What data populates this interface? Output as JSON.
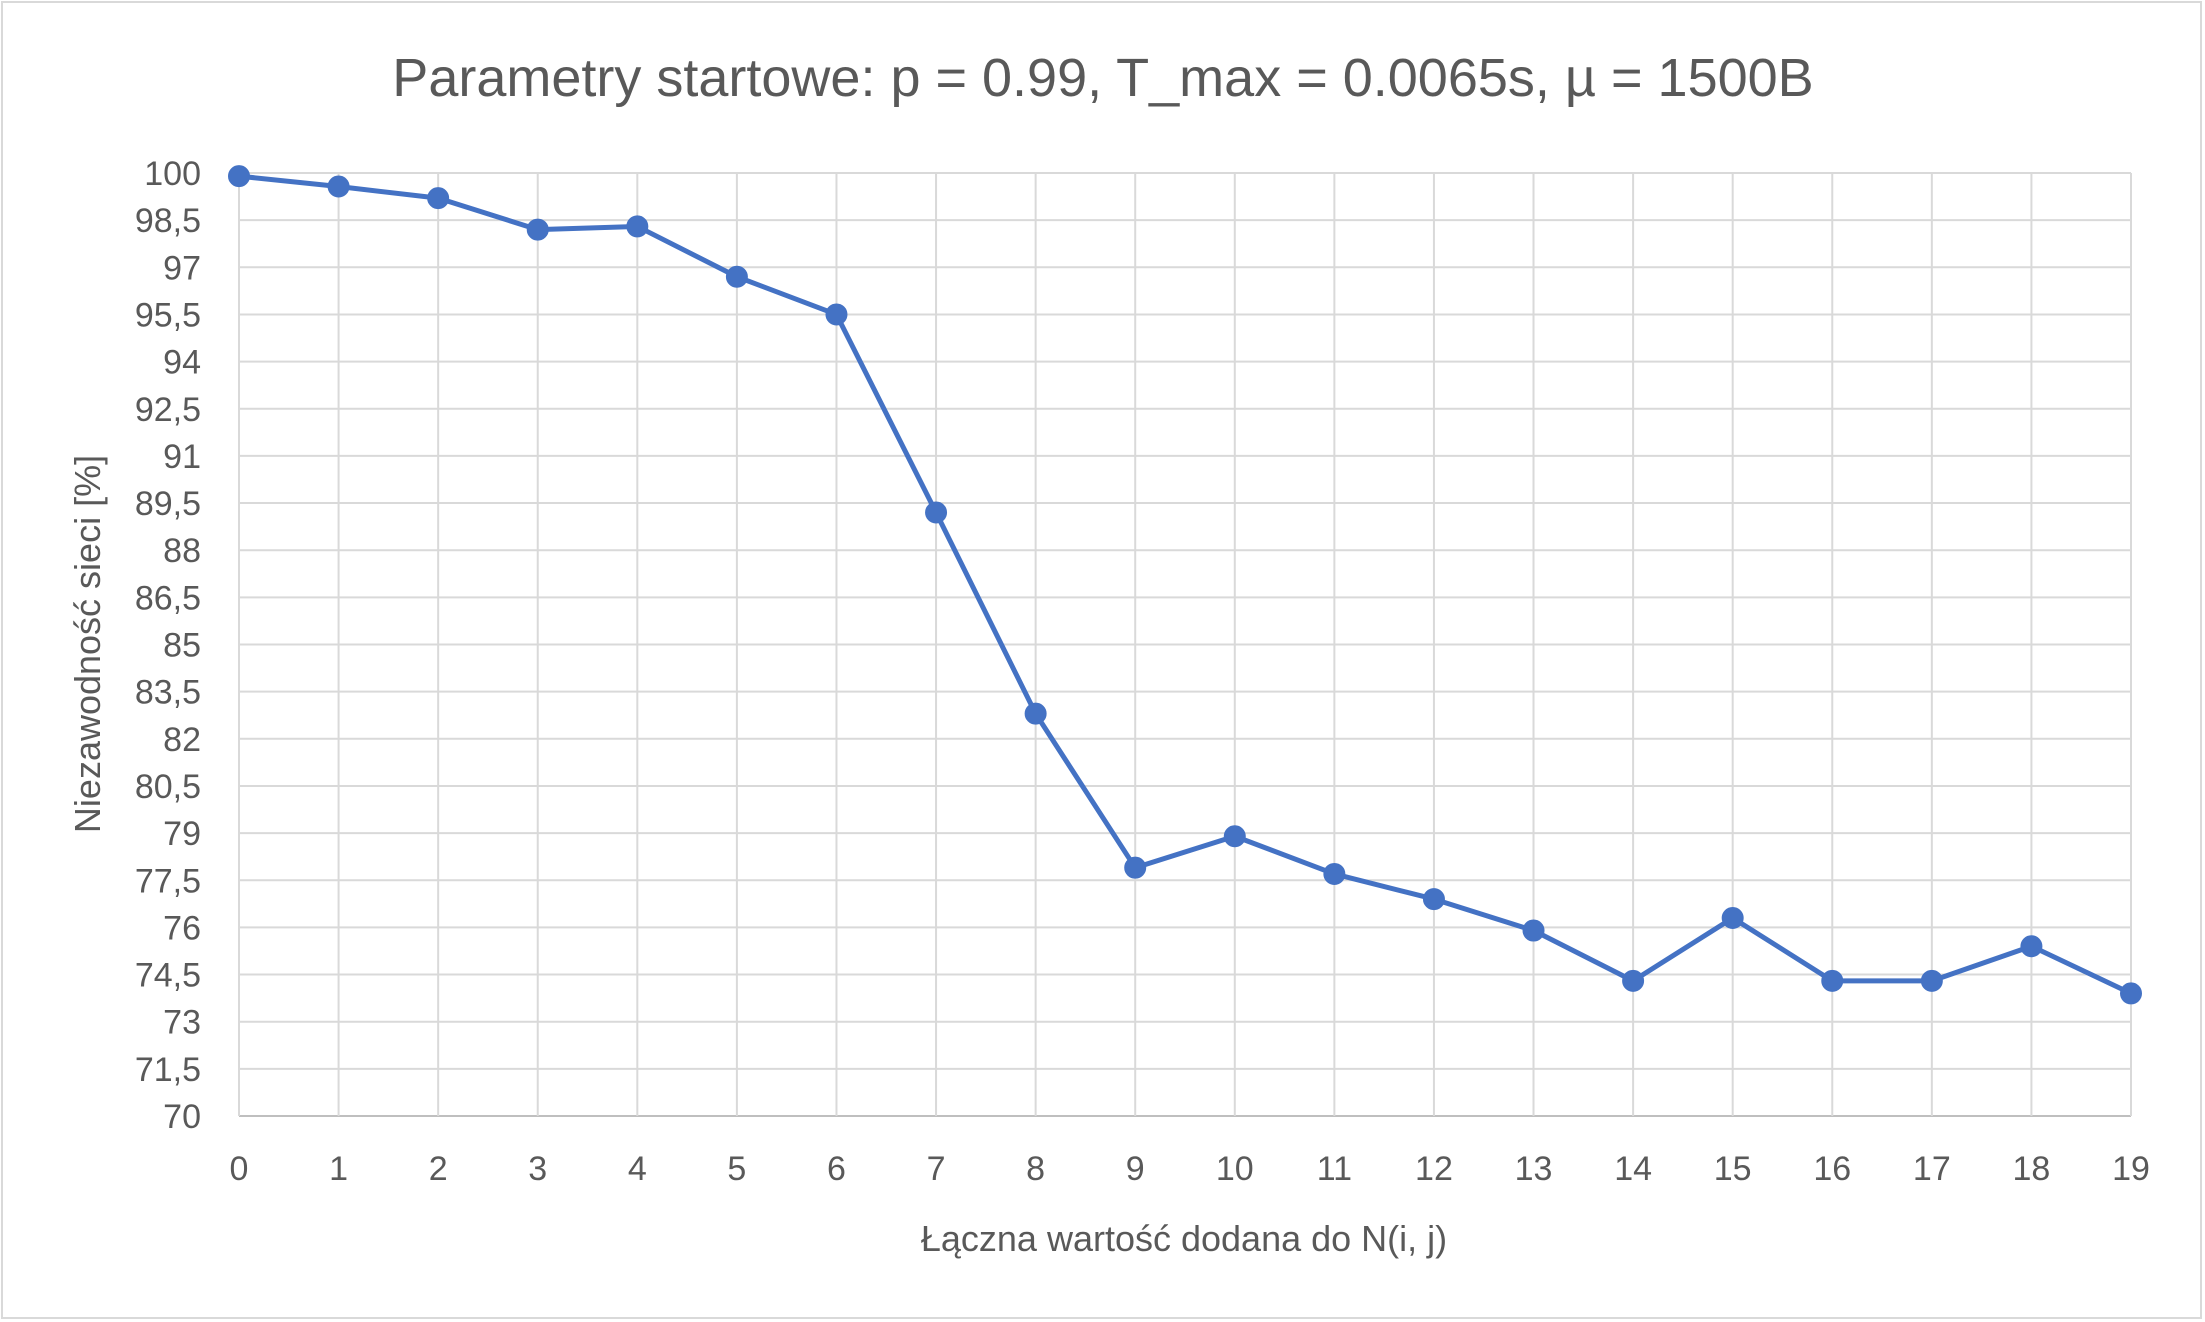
{
  "chart_data": {
    "type": "line",
    "title": "Parametry startowe: p = 0.99, T_max = 0.0065s, µ = 1500B",
    "xlabel": "Łączna wartość dodana do N(i, j)",
    "ylabel": "Niezawodność sieci [%]",
    "x_ticks": [
      "0",
      "1",
      "2",
      "3",
      "4",
      "5",
      "6",
      "7",
      "8",
      "9",
      "10",
      "11",
      "12",
      "13",
      "14",
      "15",
      "16",
      "17",
      "18",
      "19"
    ],
    "y_ticks": [
      "70",
      "71,5",
      "73",
      "74,5",
      "76",
      "77,5",
      "79",
      "80,5",
      "82",
      "83,5",
      "85",
      "86,5",
      "88",
      "89,5",
      "91",
      "92,5",
      "94",
      "95,5",
      "97",
      "98,5",
      "100"
    ],
    "xlim": [
      0,
      19
    ],
    "ylim": [
      70,
      100
    ],
    "grid": true,
    "legend": "none",
    "series": [
      {
        "x": [
          0,
          1,
          2,
          3,
          4,
          5,
          6,
          7,
          8,
          9,
          10,
          11,
          12,
          13,
          14,
          15,
          16,
          17,
          18,
          19
        ],
        "values": [
          99.9,
          99.57,
          99.2,
          98.2,
          98.3,
          96.7,
          95.5,
          89.2,
          82.8,
          77.9,
          78.9,
          77.7,
          76.9,
          75.9,
          74.3,
          76.3,
          74.3,
          74.3,
          75.4,
          73.9
        ],
        "color": "#4472c4"
      }
    ]
  }
}
